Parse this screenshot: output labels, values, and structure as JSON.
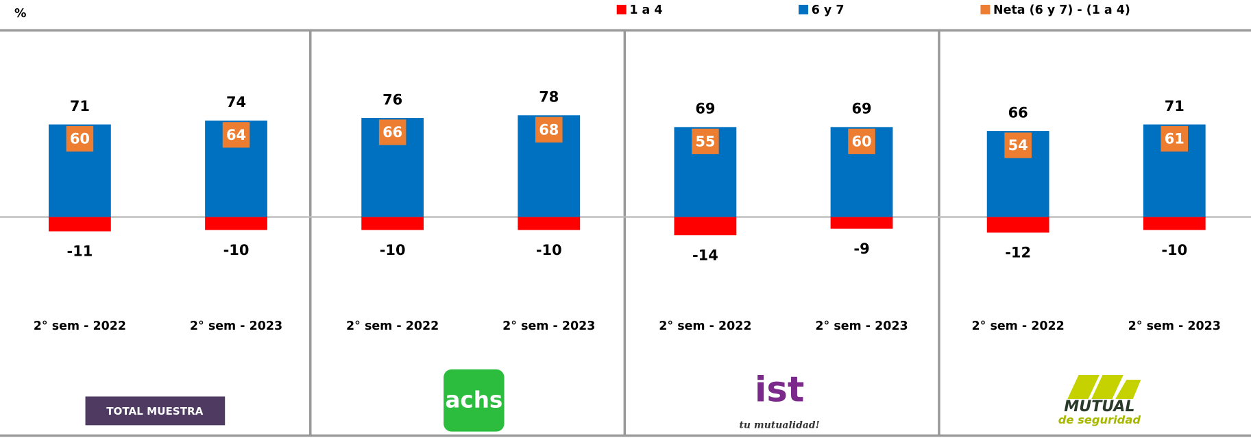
{
  "chart_data": {
    "type": "bar",
    "unit": "%",
    "categories": [
      "2° sem - 2022",
      "2° sem - 2023",
      "2° sem - 2022",
      "2° sem - 2023",
      "2° sem - 2022",
      "2° sem - 2023",
      "2° sem - 2022",
      "2° sem - 2023"
    ],
    "series": [
      {
        "name": "1 a 4",
        "color": "#ff0000",
        "values": [
          -11,
          -10,
          -10,
          -10,
          -14,
          -9,
          -12,
          -10
        ]
      },
      {
        "name": "6 y 7",
        "color": "#0070c0",
        "values": [
          71,
          74,
          76,
          78,
          69,
          69,
          66,
          71
        ]
      },
      {
        "name": "Neta (6 y 7) - (1 a 4)",
        "color": "#ed7d31",
        "values": [
          60,
          64,
          66,
          68,
          55,
          60,
          54,
          61
        ]
      }
    ],
    "panels": [
      {
        "label": "TOTAL MUESTRA"
      },
      {
        "label": "achs"
      },
      {
        "label": "ist",
        "sublabel": "tu mutualidad!"
      },
      {
        "label": "MUTUAL",
        "sublabel": "de seguridad"
      }
    ],
    "ylim": [
      -30,
      100
    ]
  }
}
